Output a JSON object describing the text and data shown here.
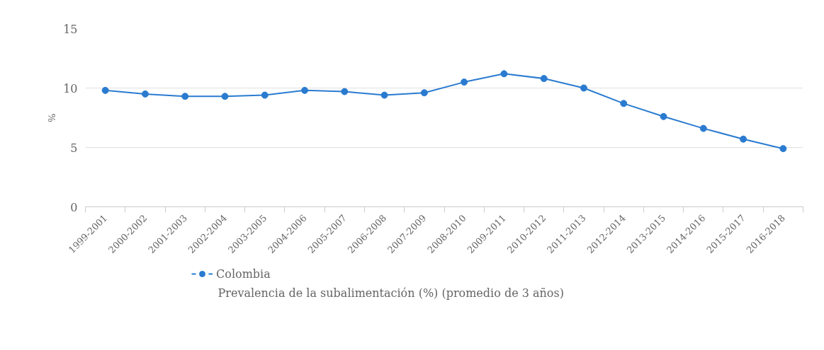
{
  "chart_data": {
    "type": "line",
    "ylabel": "%",
    "categories": [
      "1999-2001",
      "2000-2002",
      "2001-2003",
      "2002-2004",
      "2003-2005",
      "2004-2006",
      "2005-2007",
      "2006-2008",
      "2007-2009",
      "2008-2010",
      "2009-2011",
      "2010-2012",
      "2011-2013",
      "2012-2014",
      "2013-2015",
      "2014-2016",
      "2015-2017",
      "2016-2018"
    ],
    "series": [
      {
        "name": "Colombia",
        "color": "#2a7bd0",
        "values": [
          9.8,
          9.5,
          9.3,
          9.3,
          9.4,
          9.8,
          9.7,
          9.4,
          9.6,
          10.5,
          11.2,
          10.8,
          10.0,
          8.7,
          7.6,
          6.6,
          5.7,
          4.9
        ]
      }
    ],
    "annotations": [
      "Prevalencia de la subalimentación (%) (promedio de 3 años)"
    ],
    "ylim": [
      0,
      15
    ],
    "yticks": [
      0,
      5,
      10,
      15
    ],
    "grid": "y",
    "legend": "bottom left",
    "marker": "circle",
    "line_style": "solid"
  }
}
